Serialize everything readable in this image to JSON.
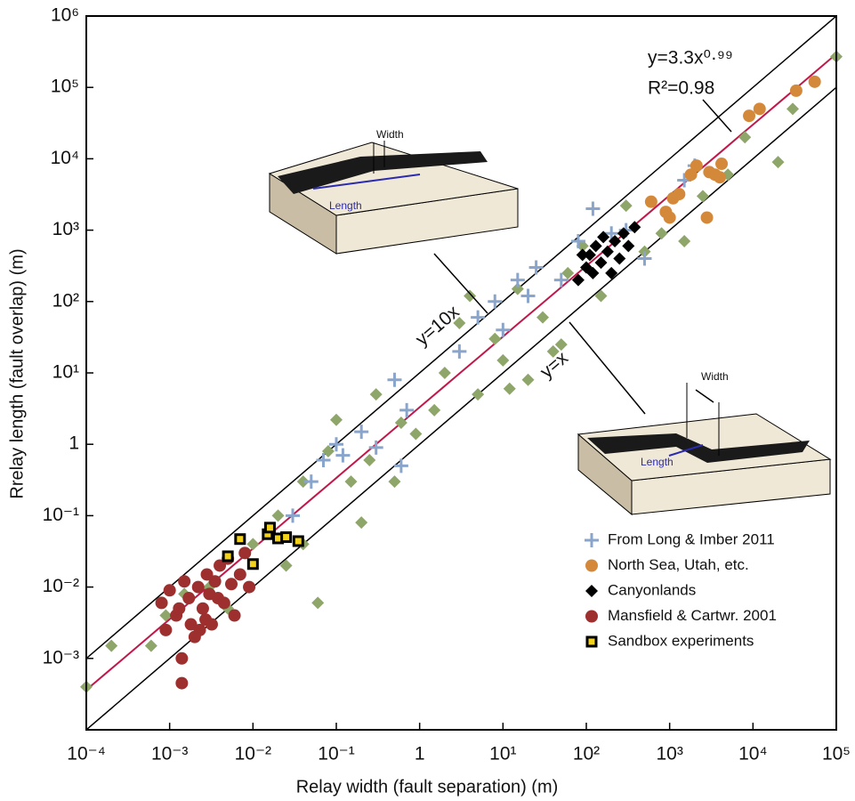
{
  "chart_data": {
    "type": "scatter",
    "log_x": true,
    "log_y": true,
    "x_label": "Relay width (fault separation) (m)",
    "y_label": "Rrelay length (fault overlap) (m)",
    "xlim": [
      0.0001,
      100000
    ],
    "ylim": [
      0.0001,
      1000000
    ],
    "xticks": [
      {
        "value": 0.0001,
        "label": "10⁻⁴"
      },
      {
        "value": 0.001,
        "label": "10⁻³"
      },
      {
        "value": 0.01,
        "label": "10⁻²"
      },
      {
        "value": 0.1,
        "label": "10⁻¹"
      },
      1,
      {
        "value": 10,
        "label": "10¹"
      },
      {
        "value": 100,
        "label": "10²"
      },
      {
        "value": 1000,
        "label": "10³"
      },
      {
        "value": 10000,
        "label": "10⁴"
      },
      {
        "value": 100000,
        "label": "10⁵"
      }
    ],
    "yticks": [
      {
        "value": 0.001,
        "label": "10⁻³"
      },
      {
        "value": 0.01,
        "label": "10⁻²"
      },
      {
        "value": 0.1,
        "label": "10⁻¹"
      },
      1,
      {
        "value": 10,
        "label": "10¹"
      },
      {
        "value": 100,
        "label": "10²"
      },
      {
        "value": 1000,
        "label": "10³"
      },
      {
        "value": 10000,
        "label": "10⁴"
      },
      {
        "value": 100000,
        "label": "10⁵"
      },
      {
        "value": 1000000,
        "label": "10⁶"
      }
    ],
    "legend": "lower right",
    "reference_lines": [
      {
        "label": "y=10x",
        "factor": 10
      },
      {
        "label": "y=x",
        "factor": 1
      }
    ],
    "fit": {
      "label": "y=3.3x⁰·⁹⁹",
      "r2_label": "R²=0.98",
      "a": 3.3,
      "b": 0.99,
      "color": "#c0184a"
    },
    "insets": [
      {
        "width_label": "Width",
        "length_label": "Length"
      },
      {
        "width_label": "Width",
        "length_label": "Length"
      }
    ],
    "series": [
      {
        "marker": "diamond",
        "color": "#8fa66a",
        "x": [
          0.0006,
          0.0009,
          0.0015,
          0.003,
          0.005,
          0.007,
          0.01,
          0.02,
          0.025,
          0.04,
          0.06,
          0.08,
          0.1,
          0.15,
          0.25,
          0.3,
          0.5,
          0.6,
          0.9,
          1.5,
          2,
          3,
          5,
          8,
          10,
          15,
          20,
          30,
          40,
          50,
          60,
          90,
          150,
          300,
          500,
          800,
          1500,
          2500,
          5000,
          8000,
          20000,
          30000,
          100000,
          0.0001,
          0.0002,
          4,
          12,
          0.04,
          0.2
        ],
        "values": [
          0.0015,
          0.004,
          0.008,
          0.01,
          0.005,
          0.015,
          0.04,
          0.1,
          0.02,
          0.3,
          0.006,
          0.8,
          2.2,
          0.3,
          0.6,
          5,
          0.3,
          2,
          1.4,
          3,
          10,
          50,
          5,
          30,
          15,
          150,
          8,
          60,
          20,
          25,
          250,
          600,
          120,
          2200,
          500,
          900,
          700,
          3000,
          6000,
          20000,
          9000,
          50000,
          270000,
          0.0004,
          0.0015,
          120,
          6,
          0.04,
          0.08
        ]
      },
      {
        "name": "From Long & Imber 2011",
        "marker": "plus",
        "color": "#8aa5cc",
        "x": [
          0.03,
          0.05,
          0.07,
          0.1,
          0.12,
          0.2,
          0.3,
          0.5,
          0.7,
          3,
          5,
          8,
          10,
          15,
          20,
          25,
          50,
          80,
          120,
          200,
          300,
          500,
          1500,
          2000,
          0.6
        ],
        "values": [
          0.1,
          0.3,
          0.6,
          1,
          0.7,
          1.5,
          0.9,
          8,
          3,
          20,
          60,
          100,
          40,
          200,
          120,
          300,
          200,
          700,
          2000,
          900,
          1000,
          400,
          5000,
          8000,
          0.5
        ]
      },
      {
        "name": "North Sea,  Utah, etc.",
        "marker": "circle",
        "color": "#d4893a",
        "x": [
          600,
          900,
          1100,
          1300,
          1800,
          2100,
          2800,
          3000,
          3500,
          4200,
          4000,
          9000,
          12000,
          33000,
          55000,
          1000
        ],
        "values": [
          2500,
          1800,
          2800,
          3200,
          6000,
          8000,
          1500,
          6500,
          6000,
          8500,
          5500,
          40000,
          50000,
          90000,
          120000,
          1500
        ]
      },
      {
        "name": "Canyonlands",
        "marker": "diamond",
        "color": "#000000",
        "x": [
          80,
          100,
          110,
          130,
          150,
          160,
          180,
          200,
          220,
          250,
          280,
          320,
          380,
          120,
          90
        ],
        "values": [
          200,
          300,
          450,
          600,
          350,
          800,
          500,
          250,
          700,
          400,
          900,
          600,
          1100,
          250,
          450
        ]
      },
      {
        "name": "Mansfield & Cartwr. 2001",
        "marker": "circle",
        "color": "#9e2f2f",
        "x": [
          0.0014,
          0.0014,
          0.0008,
          0.001,
          0.0012,
          0.0015,
          0.0017,
          0.0018,
          0.002,
          0.0022,
          0.0025,
          0.0028,
          0.003,
          0.0032,
          0.0035,
          0.004,
          0.0045,
          0.005,
          0.0055,
          0.006,
          0.007,
          0.008,
          0.009,
          0.0023,
          0.0013,
          0.0027,
          0.0009,
          0.0038
        ],
        "values": [
          0.001,
          0.00045,
          0.006,
          0.009,
          0.004,
          0.012,
          0.007,
          0.003,
          0.002,
          0.01,
          0.005,
          0.015,
          0.008,
          0.003,
          0.012,
          0.02,
          0.006,
          0.025,
          0.011,
          0.004,
          0.015,
          0.03,
          0.01,
          0.0025,
          0.005,
          0.0035,
          0.0025,
          0.007
        ]
      },
      {
        "name": "Sandbox experiments",
        "marker": "square",
        "color": "#f2d21b",
        "x": [
          0.005,
          0.007,
          0.01,
          0.015,
          0.016,
          0.02,
          0.025,
          0.035
        ],
        "values": [
          0.027,
          0.047,
          0.021,
          0.055,
          0.068,
          0.048,
          0.05,
          0.044
        ]
      }
    ]
  }
}
